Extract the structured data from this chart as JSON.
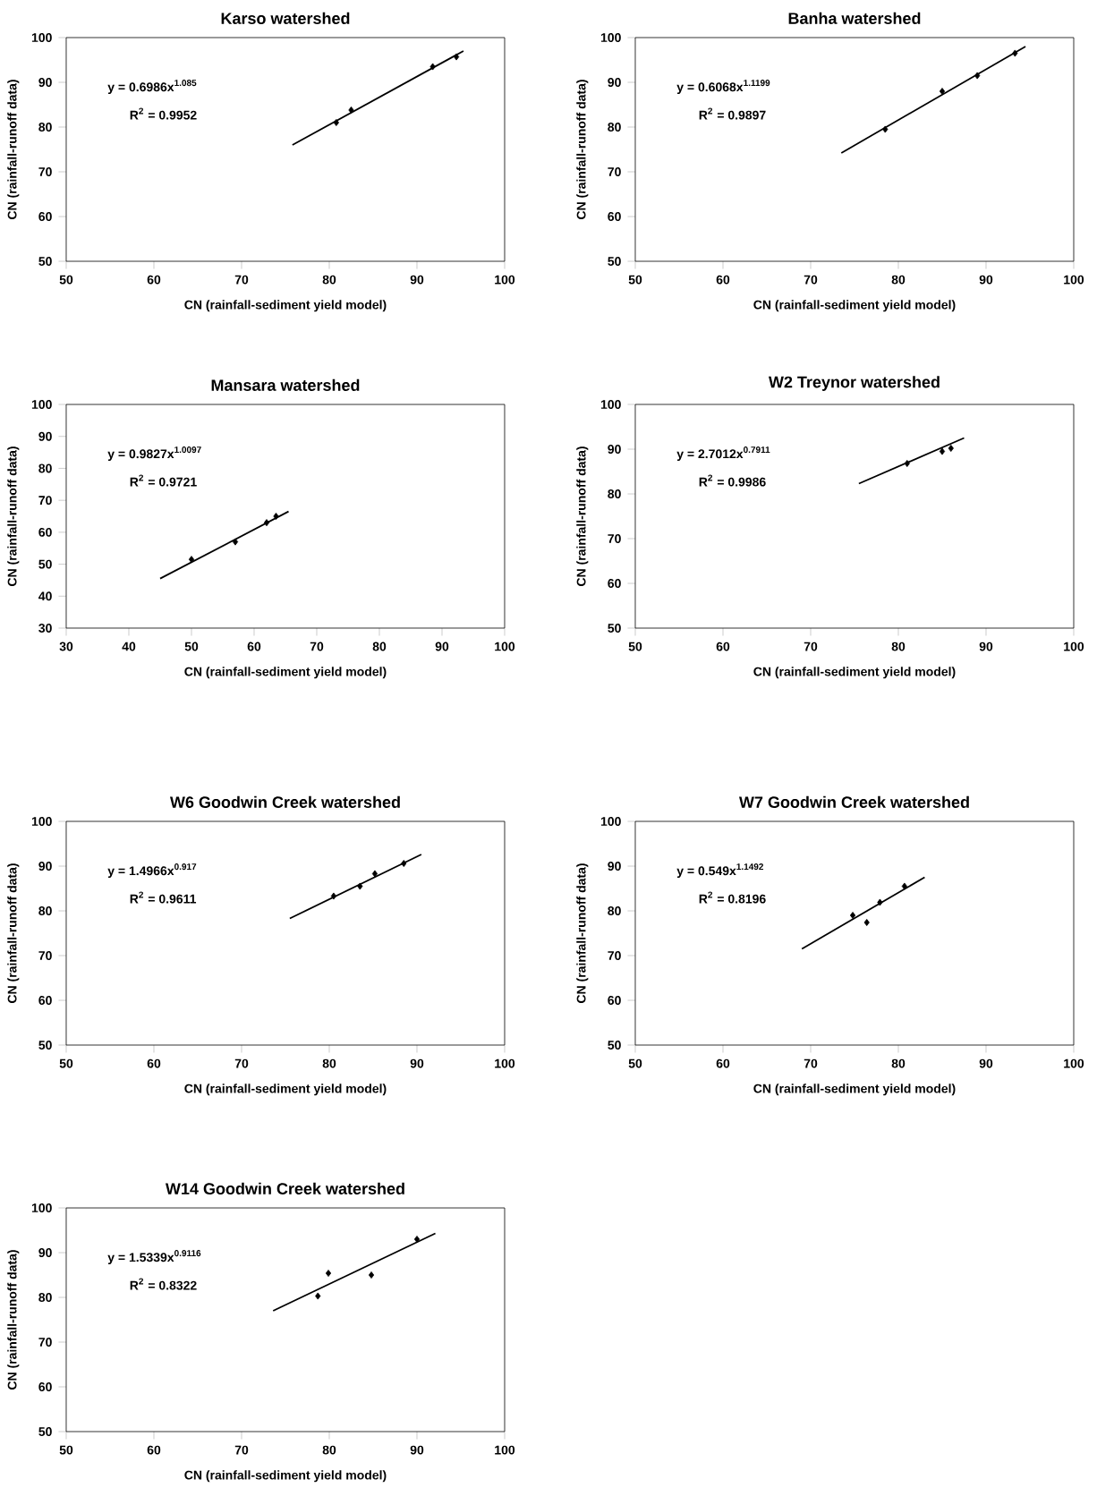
{
  "chart_data": [
    {
      "type": "scatter",
      "title": "Karso watershed",
      "xlabel": "CN (rainfall-sediment yield model)",
      "ylabel": "CN (rainfall-runoff data)",
      "xlim": [
        50,
        100
      ],
      "ylim": [
        50,
        100
      ],
      "xticks": [
        50,
        60,
        70,
        80,
        90,
        100
      ],
      "yticks": [
        50,
        60,
        70,
        80,
        90,
        100
      ],
      "annotations": [
        "y = 0.6986x$^{1.085}$",
        "R$^{2}$ = 0.9952"
      ],
      "series": [
        {
          "color": "#000000",
          "marker": "diamond",
          "x": [
            80.8,
            82.5,
            91.8,
            94.5
          ],
          "values": [
            81,
            83.8,
            93.5,
            95.7
          ]
        },
        {
          "type": "line",
          "marker": "none",
          "color": "#000000",
          "x": [
            75.8,
            95.3
          ],
          "values": [
            76,
            97
          ]
        }
      ]
    },
    {
      "type": "scatter",
      "title": "Banha watershed",
      "xlabel": "CN (rainfall-sediment yield model)",
      "ylabel": "CN (rainfall-runoff data)",
      "xlim": [
        50,
        100
      ],
      "ylim": [
        50,
        100
      ],
      "xticks": [
        50,
        60,
        70,
        80,
        90,
        100
      ],
      "yticks": [
        50,
        60,
        70,
        80,
        90,
        100
      ],
      "annotations": [
        "y = 0.6068x$^{1.1199}$",
        "R$^{2}$ = 0.9897"
      ],
      "series": [
        {
          "color": "#000000",
          "marker": "diamond",
          "x": [
            78.5,
            85,
            89,
            93.3
          ],
          "values": [
            79.5,
            88,
            91.5,
            96.5
          ]
        },
        {
          "type": "line",
          "marker": "none",
          "color": "#000000",
          "x": [
            73.5,
            94.5
          ],
          "values": [
            74.2,
            98
          ]
        }
      ]
    },
    {
      "type": "scatter",
      "title": "Mansara watershed",
      "xlabel": "CN (rainfall-sediment yield model)",
      "ylabel": "CN (rainfall-runoff data)",
      "xlim": [
        30,
        100
      ],
      "ylim": [
        30,
        100
      ],
      "xticks": [
        30,
        40,
        50,
        60,
        70,
        80,
        90,
        100
      ],
      "yticks": [
        30,
        40,
        50,
        60,
        70,
        80,
        90,
        100
      ],
      "annotations": [
        "y = 0.9827x$^{1.0097}$",
        "R$^{2}$ = 0.9721"
      ],
      "series": [
        {
          "color": "#000000",
          "marker": "diamond",
          "x": [
            50,
            57,
            62,
            63.5
          ],
          "values": [
            51.5,
            57,
            63,
            65
          ]
        },
        {
          "type": "line",
          "marker": "none",
          "color": "#000000",
          "x": [
            45,
            65.5
          ],
          "values": [
            45.5,
            66.5
          ]
        }
      ]
    },
    {
      "type": "scatter",
      "title": "W2 Treynor watershed",
      "xlabel": "CN (rainfall-sediment yield model)",
      "ylabel": "CN (rainfall-runoff data)",
      "xlim": [
        50,
        100
      ],
      "ylim": [
        50,
        100
      ],
      "xticks": [
        50,
        60,
        70,
        80,
        90,
        100
      ],
      "yticks": [
        50,
        60,
        70,
        80,
        90,
        100
      ],
      "annotations": [
        "y = 2.7012x$^{0.7911}$",
        "R$^{2}$ = 0.9986"
      ],
      "series": [
        {
          "color": "#000000",
          "marker": "diamond",
          "x": [
            81,
            85,
            86
          ],
          "values": [
            86.8,
            89.5,
            90.2
          ]
        },
        {
          "type": "line",
          "marker": "none",
          "color": "#000000",
          "x": [
            75.5,
            87.5
          ],
          "values": [
            82.3,
            92.5
          ]
        }
      ]
    },
    {
      "type": "scatter",
      "title": "W6 Goodwin Creek watershed",
      "xlabel": "CN (rainfall-sediment yield model)",
      "ylabel": "CN (rainfall-runoff data)",
      "xlim": [
        50,
        100
      ],
      "ylim": [
        50,
        100
      ],
      "xticks": [
        50,
        60,
        70,
        80,
        90,
        100
      ],
      "yticks": [
        50,
        60,
        70,
        80,
        90,
        100
      ],
      "annotations": [
        "y = 1.4966x$^{0.917}$",
        "R$^{2}$ = 0.9611"
      ],
      "series": [
        {
          "color": "#000000",
          "marker": "diamond",
          "x": [
            80.5,
            83.5,
            85.2,
            88.5
          ],
          "values": [
            83.3,
            85.5,
            88.3,
            90.6
          ]
        },
        {
          "type": "line",
          "marker": "none",
          "color": "#000000",
          "x": [
            75.5,
            90.5
          ],
          "values": [
            78.3,
            92.6
          ]
        }
      ]
    },
    {
      "type": "scatter",
      "title": "W7 Goodwin Creek watershed",
      "xlabel": "CN (rainfall-sediment yield model)",
      "ylabel": "CN (rainfall-runoff data)",
      "xlim": [
        50,
        100
      ],
      "ylim": [
        50,
        100
      ],
      "xticks": [
        50,
        60,
        70,
        80,
        90,
        100
      ],
      "yticks": [
        50,
        60,
        70,
        80,
        90,
        100
      ],
      "annotations": [
        "y = 0.549x$^{1.1492}$",
        "R$^{2}$ = 0.8196"
      ],
      "series": [
        {
          "color": "#000000",
          "marker": "diamond",
          "x": [
            74.8,
            76.4,
            77.9,
            80.7
          ],
          "values": [
            79,
            77.4,
            81.9,
            85.5
          ]
        },
        {
          "type": "line",
          "marker": "none",
          "color": "#000000",
          "x": [
            69,
            83
          ],
          "values": [
            71.5,
            87.5
          ]
        }
      ]
    },
    {
      "type": "scatter",
      "title": "W14 Goodwin Creek watershed",
      "xlabel": "CN (rainfall-sediment yield model)",
      "ylabel": "CN (rainfall-runoff data)",
      "xlim": [
        50,
        100
      ],
      "ylim": [
        50,
        100
      ],
      "xticks": [
        50,
        60,
        70,
        80,
        90,
        100
      ],
      "yticks": [
        50,
        60,
        70,
        80,
        90,
        100
      ],
      "annotations": [
        "y = 1.5339x$^{0.9116}$",
        "R$^{2}$ = 0.8322"
      ],
      "series": [
        {
          "color": "#000000",
          "marker": "diamond",
          "x": [
            78.7,
            79.9,
            84.8,
            90
          ],
          "values": [
            80.3,
            85.4,
            85,
            93
          ]
        },
        {
          "type": "line",
          "marker": "none",
          "color": "#000000",
          "x": [
            73.6,
            92.1
          ],
          "values": [
            77,
            94.3
          ]
        }
      ]
    }
  ]
}
